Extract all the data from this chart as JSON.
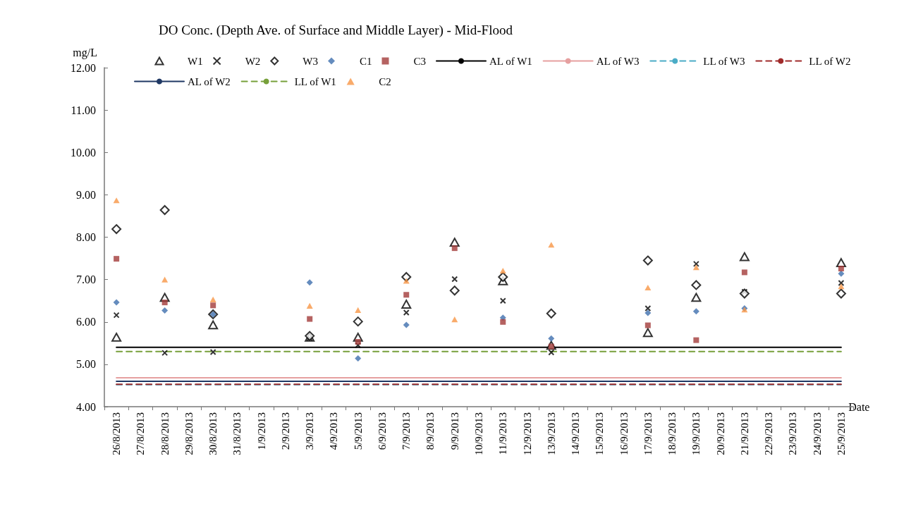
{
  "chart_data": {
    "type": "scatter",
    "title": "DO Conc. (Depth Ave. of Surface and Middle Layer) - Mid-Flood",
    "xlabel": "Date",
    "ylabel": "mg/L",
    "categories": [
      "26/8/2013",
      "27/8/2013",
      "28/8/2013",
      "29/8/2013",
      "30/8/2013",
      "31/8/2013",
      "1/9/2013",
      "2/9/2013",
      "3/9/2013",
      "4/9/2013",
      "5/9/2013",
      "6/9/2013",
      "7/9/2013",
      "8/9/2013",
      "9/9/2013",
      "10/9/2013",
      "11/9/2013",
      "12/9/2013",
      "13/9/2013",
      "14/9/2013",
      "15/9/2013",
      "16/9/2013",
      "17/9/2013",
      "18/9/2013",
      "19/9/2013",
      "20/9/2013",
      "21/9/2013",
      "22/9/2013",
      "23/9/2013",
      "24/9/2013",
      "25/9/2013"
    ],
    "ylim": [
      4,
      12
    ],
    "yticks": [
      {
        "value": 4,
        "label": "4.00"
      },
      {
        "value": 5,
        "label": "5.00"
      },
      {
        "value": 6,
        "label": "6.00"
      },
      {
        "value": 7,
        "label": "7.00"
      },
      {
        "value": 8,
        "label": "8.00"
      },
      {
        "value": 9,
        "label": "9.00"
      },
      {
        "value": 10,
        "label": "10.00"
      },
      {
        "value": 11,
        "label": "11.00"
      },
      {
        "value": 12,
        "label": "12.00"
      }
    ],
    "grid": false,
    "legend": "top",
    "series": [
      {
        "name": "W1",
        "marker": "triangle",
        "color": "#000000",
        "values": [
          5.64,
          null,
          6.58,
          null,
          5.93,
          null,
          null,
          null,
          5.64,
          null,
          5.64,
          null,
          6.42,
          null,
          7.88,
          null,
          6.97,
          null,
          5.45,
          null,
          null,
          null,
          5.75,
          null,
          6.58,
          null,
          7.54,
          null,
          null,
          null,
          7.4
        ]
      },
      {
        "name": "W2",
        "marker": "cross",
        "color": "#000000",
        "values": [
          6.16,
          null,
          5.27,
          null,
          5.29,
          null,
          null,
          null,
          5.62,
          null,
          5.45,
          null,
          6.22,
          null,
          7.01,
          null,
          6.5,
          null,
          5.28,
          null,
          null,
          null,
          6.32,
          null,
          7.37,
          null,
          6.71,
          null,
          null,
          null,
          6.92
        ]
      },
      {
        "name": "W3",
        "marker": "diamond",
        "color": "#000000",
        "values": [
          8.19,
          null,
          8.64,
          null,
          6.18,
          null,
          null,
          null,
          5.67,
          null,
          6.01,
          null,
          7.06,
          null,
          6.74,
          null,
          7.06,
          null,
          6.2,
          null,
          null,
          null,
          7.45,
          null,
          6.87,
          null,
          6.67,
          null,
          null,
          null,
          6.67
        ]
      },
      {
        "name": "C1",
        "marker": "diamond",
        "color": "#3f6fae",
        "values": [
          6.46,
          null,
          6.27,
          null,
          6.18,
          null,
          null,
          null,
          6.93,
          null,
          5.14,
          null,
          5.93,
          null,
          null,
          null,
          6.1,
          null,
          5.61,
          null,
          null,
          null,
          6.21,
          null,
          6.25,
          null,
          6.32,
          null,
          null,
          null,
          7.14
        ]
      },
      {
        "name": "C3",
        "marker": "square",
        "color": "#a23b3a",
        "values": [
          7.49,
          null,
          6.46,
          null,
          6.39,
          null,
          null,
          null,
          6.07,
          null,
          5.53,
          null,
          6.64,
          null,
          7.74,
          null,
          6.0,
          null,
          5.42,
          null,
          null,
          null,
          5.92,
          null,
          5.57,
          null,
          7.17,
          null,
          null,
          null,
          7.26
        ]
      },
      {
        "name": "AL of W1",
        "type": "line",
        "line_style": "solid",
        "color": "#000000",
        "values": [
          5.4,
          5.4,
          5.4,
          5.4,
          5.4,
          5.4,
          5.4,
          5.4,
          5.4,
          5.4,
          5.4,
          5.4,
          5.4,
          5.4,
          5.4,
          5.4,
          5.4,
          5.4,
          5.4,
          5.4,
          5.4,
          5.4,
          5.4,
          5.4,
          5.4,
          5.4,
          5.4,
          5.4,
          5.4,
          5.4,
          5.4
        ]
      },
      {
        "name": "AL of W3",
        "type": "line",
        "line_style": "solid",
        "color": "#e6a0a0",
        "values": [
          4.68,
          4.68,
          4.68,
          4.68,
          4.68,
          4.68,
          4.68,
          4.68,
          4.68,
          4.68,
          4.68,
          4.68,
          4.68,
          4.68,
          4.68,
          4.68,
          4.68,
          4.68,
          4.68,
          4.68,
          4.68,
          4.68,
          4.68,
          4.68,
          4.68,
          4.68,
          4.68,
          4.68,
          4.68,
          4.68,
          4.68
        ]
      },
      {
        "name": "LL of W3",
        "type": "line",
        "line_style": "dashed",
        "color": "#4bacc6",
        "values": [
          4.52,
          4.52,
          4.52,
          4.52,
          4.52,
          4.52,
          4.52,
          4.52,
          4.52,
          4.52,
          4.52,
          4.52,
          4.52,
          4.52,
          4.52,
          4.52,
          4.52,
          4.52,
          4.52,
          4.52,
          4.52,
          4.52,
          4.52,
          4.52,
          4.52,
          4.52,
          4.52,
          4.52,
          4.52,
          4.52,
          4.52
        ]
      },
      {
        "name": "LL of W2",
        "type": "line",
        "line_style": "dashed",
        "color": "#a02b2b",
        "values": [
          4.53,
          4.53,
          4.53,
          4.53,
          4.53,
          4.53,
          4.53,
          4.53,
          4.53,
          4.53,
          4.53,
          4.53,
          4.53,
          4.53,
          4.53,
          4.53,
          4.53,
          4.53,
          4.53,
          4.53,
          4.53,
          4.53,
          4.53,
          4.53,
          4.53,
          4.53,
          4.53,
          4.53,
          4.53,
          4.53,
          4.53
        ]
      },
      {
        "name": "AL of W2",
        "type": "line",
        "line_style": "solid",
        "color": "#1f3864",
        "values": [
          4.6,
          4.6,
          4.6,
          4.6,
          4.6,
          4.6,
          4.6,
          4.6,
          4.6,
          4.6,
          4.6,
          4.6,
          4.6,
          4.6,
          4.6,
          4.6,
          4.6,
          4.6,
          4.6,
          4.6,
          4.6,
          4.6,
          4.6,
          4.6,
          4.6,
          4.6,
          4.6,
          4.6,
          4.6,
          4.6,
          4.6
        ]
      },
      {
        "name": "LL of W1",
        "type": "line",
        "line_style": "dashed",
        "color": "#77a03a",
        "values": [
          5.3,
          5.3,
          5.3,
          5.3,
          5.3,
          5.3,
          5.3,
          5.3,
          5.3,
          5.3,
          5.3,
          5.3,
          5.3,
          5.3,
          5.3,
          5.3,
          5.3,
          5.3,
          5.3,
          5.3,
          5.3,
          5.3,
          5.3,
          5.3,
          5.3,
          5.3,
          5.3,
          5.3,
          5.3,
          5.3,
          5.3
        ]
      },
      {
        "name": "C2",
        "marker": "triangle",
        "color": "#f79646",
        "values": [
          8.87,
          null,
          7.0,
          null,
          6.53,
          null,
          null,
          null,
          6.38,
          null,
          6.28,
          null,
          6.97,
          null,
          6.06,
          null,
          7.21,
          null,
          7.82,
          null,
          null,
          null,
          6.81,
          null,
          7.29,
          null,
          6.29,
          null,
          null,
          null,
          6.84
        ]
      }
    ]
  }
}
